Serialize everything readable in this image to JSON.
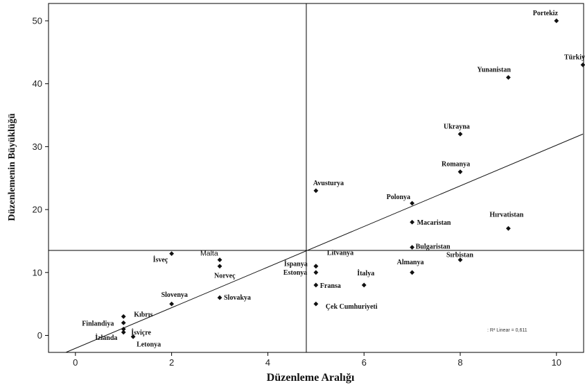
{
  "chart_data": {
    "type": "scatter",
    "xlabel": "Düzenleme Aralığı",
    "ylabel": "Düzenlemenin Büyüklüğü",
    "xlim": [
      -0.55,
      10.55
    ],
    "ylim": [
      -2.8,
      52.8
    ],
    "xticks": [
      "0",
      "2",
      "4",
      "6",
      "8",
      "10"
    ],
    "yticks": [
      "0",
      "10",
      "20",
      "30",
      "40",
      "50"
    ],
    "mean_lines": {
      "x": 4.8,
      "y": 13.5
    },
    "fit_line": {
      "type": "linear",
      "r2_label": ": R² Linear = 0,611",
      "start": [
        -0.2,
        -2.8
      ],
      "end": [
        10.55,
        32
      ]
    },
    "points": [
      {
        "label": "Portekiz",
        "x": 10,
        "y": 50
      },
      {
        "label": "Türkiye",
        "x": 10.55,
        "y": 43
      },
      {
        "label": "Yunanistan",
        "x": 9,
        "y": 41
      },
      {
        "label": "Ukrayna",
        "x": 8,
        "y": 32
      },
      {
        "label": "Romanya",
        "x": 8,
        "y": 26
      },
      {
        "label": "Avusturya",
        "x": 5,
        "y": 23
      },
      {
        "label": "Polonya",
        "x": 7,
        "y": 21
      },
      {
        "label": "Macaristan",
        "x": 7,
        "y": 18
      },
      {
        "label": "Hırvatistan",
        "x": 9,
        "y": 17
      },
      {
        "label": "Bulgaristan",
        "x": 7,
        "y": 14
      },
      {
        "label": "Sırbistan",
        "x": 8,
        "y": 12
      },
      {
        "label": "Almanya",
        "x": 7,
        "y": 10
      },
      {
        "label": "Litvanya",
        "x": 5,
        "y": 11
      },
      {
        "label": "İspanya",
        "x": 5,
        "y": 11
      },
      {
        "label": "Estonya",
        "x": 5,
        "y": 10
      },
      {
        "label": "İtalya",
        "x": 6,
        "y": 8
      },
      {
        "label": "Fransa",
        "x": 5,
        "y": 8
      },
      {
        "label": "Çek Cumhuriyeti",
        "x": 5,
        "y": 5
      },
      {
        "label": "İsveç",
        "x": 2,
        "y": 13
      },
      {
        "label": "Malta",
        "x": 3,
        "y": 12
      },
      {
        "label": "Norveç",
        "x": 3,
        "y": 11
      },
      {
        "label": "Slovenya",
        "x": 2,
        "y": 5
      },
      {
        "label": "Slovakya",
        "x": 3,
        "y": 6
      },
      {
        "label": "Kıbrıs",
        "x": 1,
        "y": 3
      },
      {
        "label": "Finlandiya",
        "x": 1,
        "y": 2
      },
      {
        "label": "İsviçre",
        "x": 1,
        "y": 1
      },
      {
        "label": "İzlanda",
        "x": 1,
        "y": 0.5
      },
      {
        "label": "Letonya",
        "x": 1.2,
        "y": -0.2
      }
    ]
  }
}
